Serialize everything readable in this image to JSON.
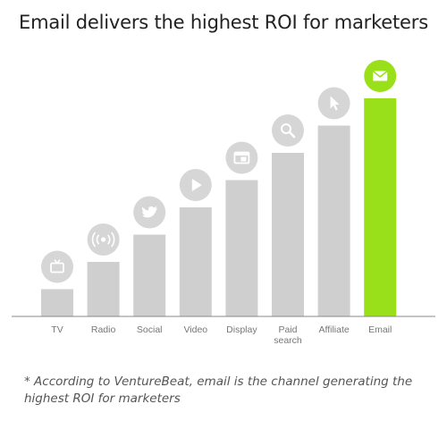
{
  "chart_data": {
    "type": "bar",
    "title": "Email delivers the highest ROI for marketers",
    "xlabel": "",
    "ylabel": "",
    "categories": [
      "TV",
      "Radio",
      "Social",
      "Video",
      "Display",
      "Paid search",
      "Affiliate",
      "Email"
    ],
    "values": [
      1,
      2,
      3,
      4,
      5,
      6,
      7,
      8
    ],
    "ylim": [
      0,
      8
    ],
    "grid": false,
    "legend": "none",
    "highlight": "Email",
    "icons": [
      "tv-icon",
      "radio-broadcast-icon",
      "twitter-bird-icon",
      "play-icon",
      "display-window-icon",
      "magnifier-icon",
      "cursor-icon",
      "envelope-icon"
    ],
    "colors": {
      "bar": "#cfcfcf",
      "highlight": "#99e01b",
      "icon_bg": "#d6d6d6",
      "axis": "#888888"
    }
  },
  "footnote": "* According to VentureBeat, email is the channel generating the highest ROI for marketers"
}
